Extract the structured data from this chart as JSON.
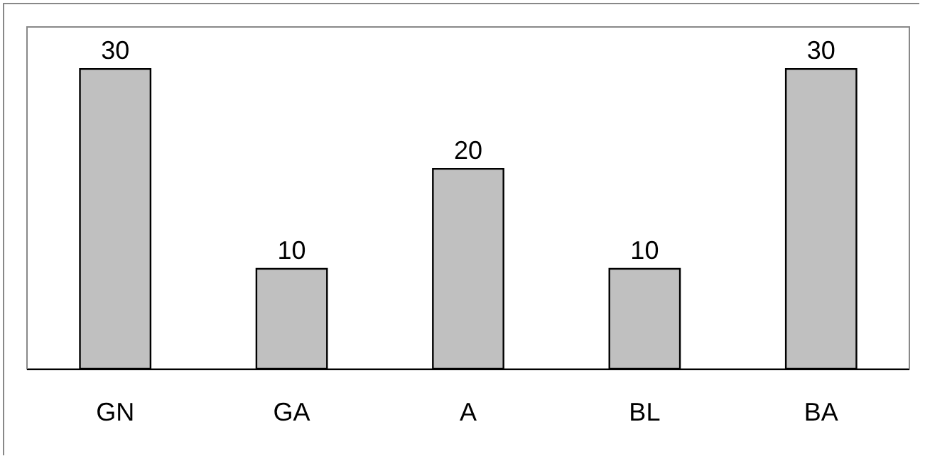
{
  "chart_data": {
    "type": "bar",
    "categories": [
      "GN",
      "GA",
      "A",
      "BL",
      "BA"
    ],
    "values": [
      30,
      10,
      20,
      10,
      30
    ],
    "color": "#c0c0c0",
    "data_labels": true,
    "grid": false,
    "legend": false
  }
}
